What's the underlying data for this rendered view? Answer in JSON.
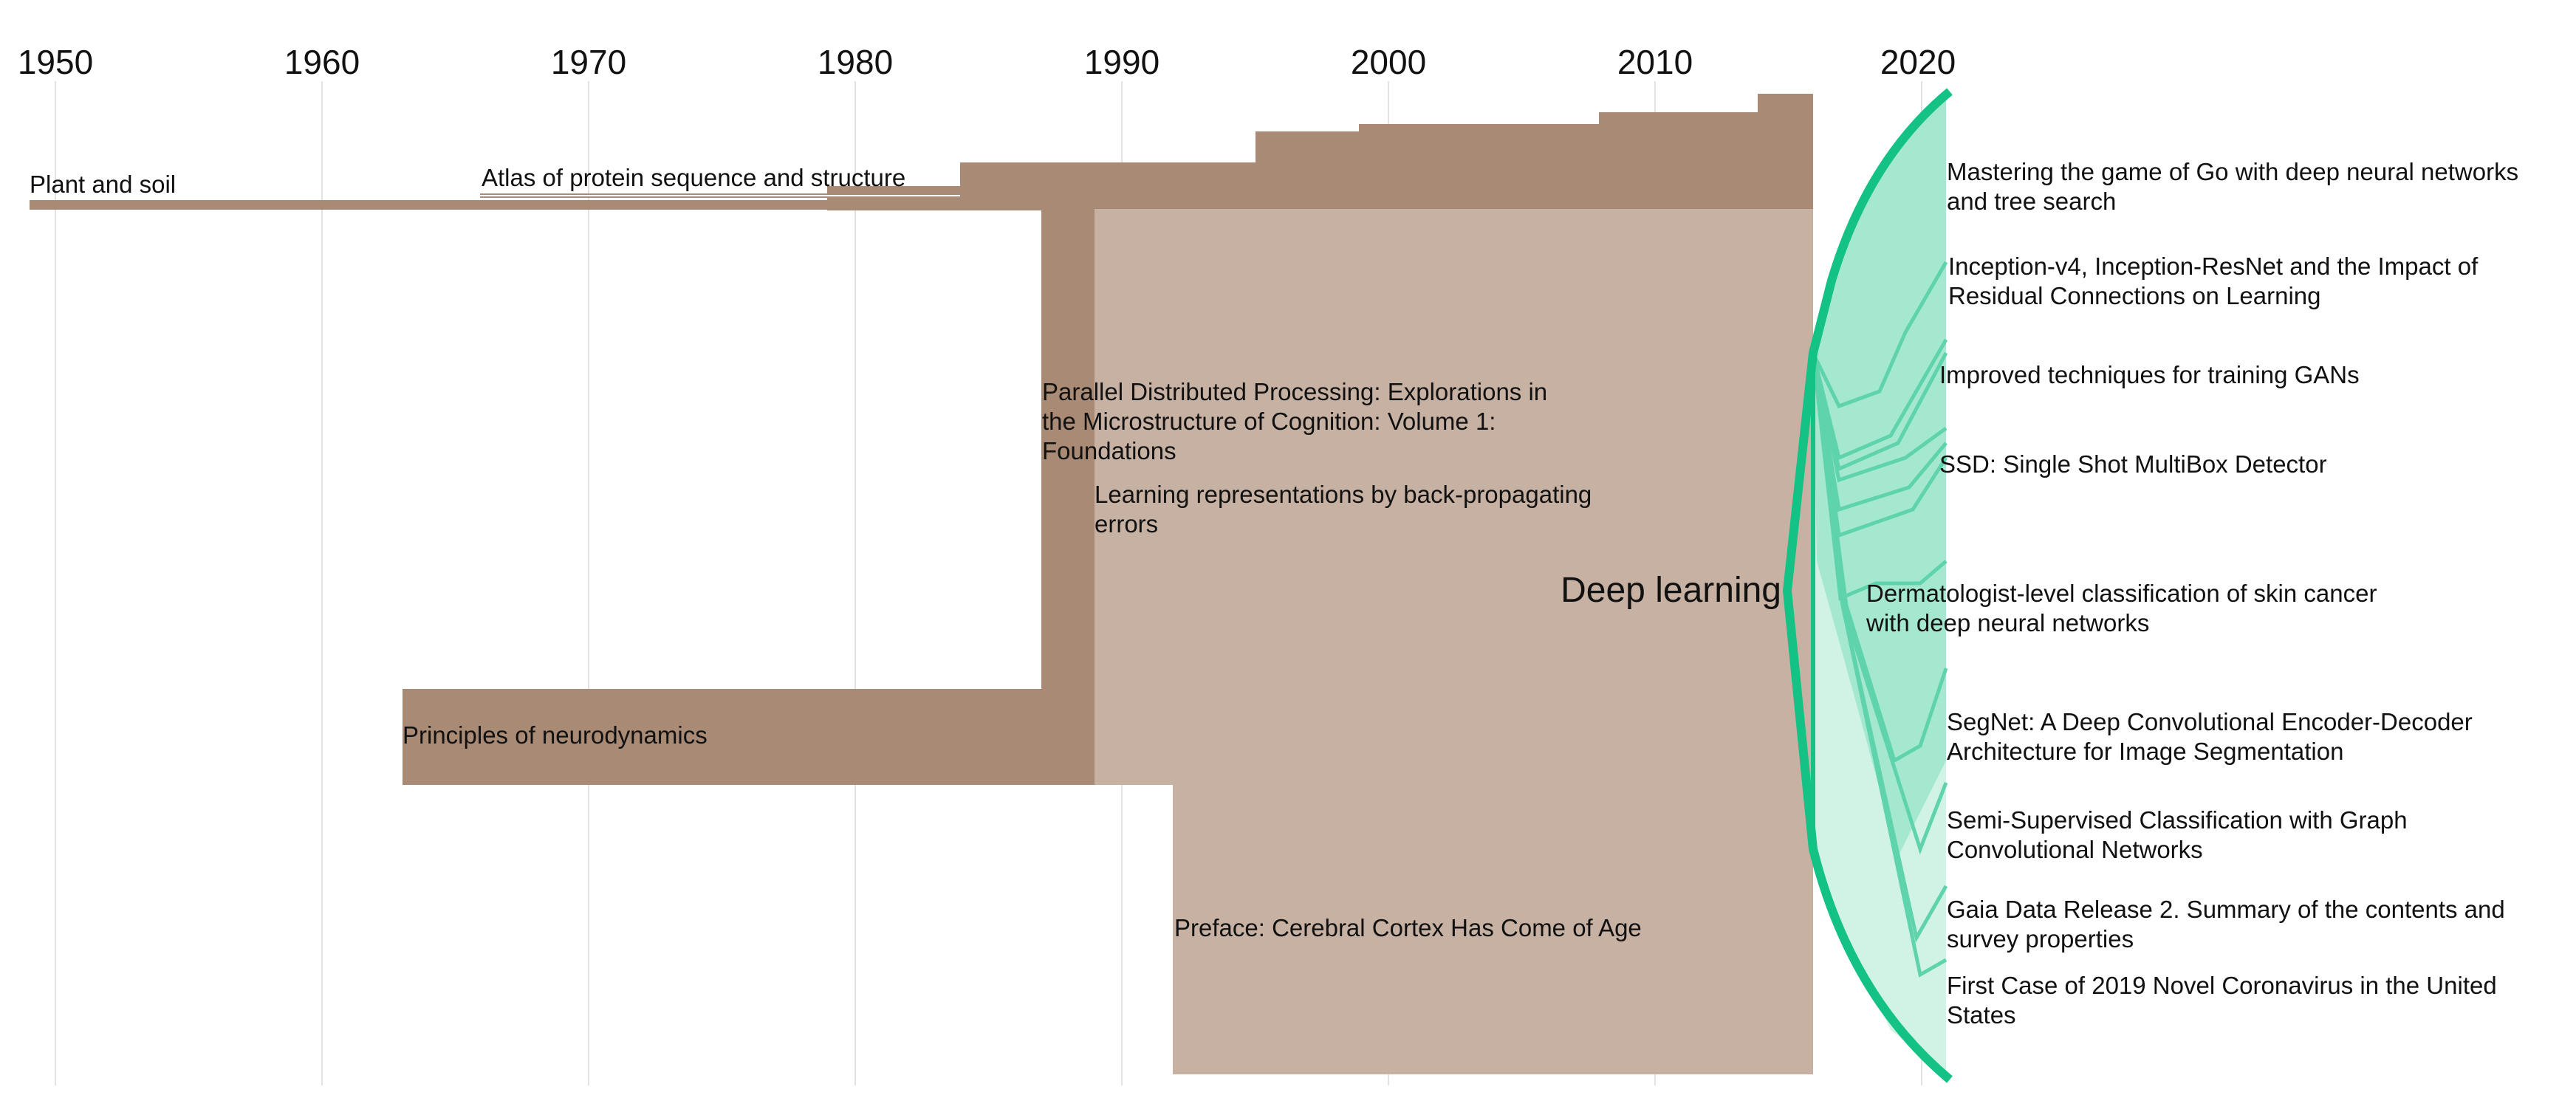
{
  "axis": {
    "years": [
      "1950",
      "1960",
      "1970",
      "1980",
      "1990",
      "2000",
      "2010",
      "2020"
    ]
  },
  "colors": {
    "brown_dark": "#a98a74",
    "brown_light": "#c7b1a2",
    "green": "#14c285",
    "green_fill": "#a5e8d0",
    "green_fill_light": "#d0f3e6",
    "grid": "#e2e2e2"
  },
  "left_labels": {
    "plant_and_soil": "Plant and soil",
    "atlas": "Atlas of protein sequence and structure",
    "parallel_line1": "Parallel Distributed Processing: Explorations in",
    "parallel_line2": "the Microstructure of Cognition: Volume 1:",
    "parallel_line3": "Foundations",
    "backprop_line1": "Learning representations by back-propagating",
    "backprop_line2": "errors",
    "neurodynamics": "Principles of neurodynamics",
    "cortex": "Preface: Cerebral Cortex Has Come of Age"
  },
  "center_label": "Deep learning",
  "right_labels": {
    "go_line1": "Mastering the game of Go with deep neural networks",
    "go_line2": "and tree search",
    "inception_line1": "Inception-v4, Inception-ResNet and the Impact of",
    "inception_line2": "Residual Connections on Learning",
    "gans": "Improved techniques for training GANs",
    "ssd": "SSD: Single Shot MultiBox Detector",
    "derm_line1": "Dermatologist-level classification of skin cancer",
    "derm_line2": "with deep neural networks",
    "segnet_line1": "SegNet: A Deep Convolutional Encoder-Decoder",
    "segnet_line2": "Architecture for Image Segmentation",
    "gcn_line1": "Semi-Supervised Classification with Graph",
    "gcn_line2": "Convolutional Networks",
    "gaia_line1": "Gaia Data Release 2. Summary of the contents and",
    "gaia_line2": "survey properties",
    "covid_line1": "First Case of 2019 Novel Coronavirus in the United",
    "covid_line2": "States"
  }
}
